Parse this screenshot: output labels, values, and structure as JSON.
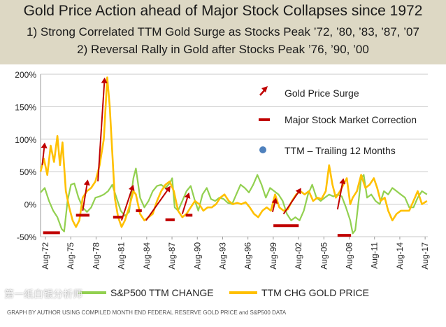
{
  "header": {
    "title": "Gold Price Action ahead of Major Stock Collapses since 1972",
    "line1": "1) Strong Correlated TTM Gold Surge as Stocks Peak ’72, ’80, ’83, ’87, ’07",
    "line2": "2) Reversal Rally in Gold  after Stocks Peak ’76, ’90, ’00"
  },
  "legend": {
    "surge": "Gold Price Surge",
    "correction": "Major Stock Market Correction",
    "ttm": "TTM – Trailing 12 Months",
    "sp500": "S&P500 TTM CHANGE",
    "gold": "TTM CHG GOLD PRICE"
  },
  "watermark": "第一纸白银分析师",
  "source": "GRAPH BY AUTHOR USING COMPILED  MONTH END FEDERAL RESERVE GOLD PRICE  and S&P500 DATA",
  "colors": {
    "gold": "#ffc000",
    "sp500": "#92d050",
    "marker": "#c00000",
    "dot": "#4f81bd",
    "header_bg": "#ddd8c4"
  },
  "chart_data": {
    "type": "line",
    "ylim": [
      -50,
      200
    ],
    "y_ticks": [
      "-50%",
      "0%",
      "50%",
      "100%",
      "150%",
      "200%"
    ],
    "y_tick_values": [
      -50,
      0,
      50,
      100,
      150,
      200
    ],
    "x_ticks": [
      "Aug-72",
      "Aug-75",
      "Aug-78",
      "Aug-81",
      "Aug-84",
      "Aug-87",
      "Aug-90",
      "Aug-93",
      "Aug-96",
      "Aug-99",
      "Aug-02",
      "Aug-05",
      "Aug-08",
      "Aug-11",
      "Aug-14",
      "Aug-17"
    ],
    "x_tick_values": [
      1972.58,
      1975.58,
      1978.58,
      1981.58,
      1984.58,
      1987.58,
      1990.58,
      1993.58,
      1996.58,
      1999.58,
      2002.58,
      2005.58,
      2008.58,
      2011.58,
      2014.58,
      2017.58
    ],
    "xlim": [
      1972.0,
      2017.9
    ],
    "grid": "horizontal",
    "series": [
      {
        "name": "S&P500 TTM CHANGE",
        "color": "#92d050",
        "points": [
          [
            1972.0,
            18
          ],
          [
            1972.5,
            25
          ],
          [
            1973.0,
            5
          ],
          [
            1973.5,
            -10
          ],
          [
            1974.0,
            -20
          ],
          [
            1974.5,
            -38
          ],
          [
            1974.8,
            -42
          ],
          [
            1975.2,
            5
          ],
          [
            1975.6,
            30
          ],
          [
            1976.0,
            32
          ],
          [
            1976.5,
            10
          ],
          [
            1977.0,
            -5
          ],
          [
            1977.5,
            -12
          ],
          [
            1978.0,
            -5
          ],
          [
            1978.5,
            10
          ],
          [
            1979.0,
            12
          ],
          [
            1979.5,
            15
          ],
          [
            1980.0,
            20
          ],
          [
            1980.5,
            30
          ],
          [
            1981.0,
            10
          ],
          [
            1981.5,
            -10
          ],
          [
            1982.0,
            -18
          ],
          [
            1982.5,
            -12
          ],
          [
            1983.0,
            40
          ],
          [
            1983.3,
            55
          ],
          [
            1983.8,
            10
          ],
          [
            1984.3,
            -5
          ],
          [
            1984.8,
            5
          ],
          [
            1985.3,
            20
          ],
          [
            1985.8,
            28
          ],
          [
            1986.3,
            30
          ],
          [
            1986.8,
            25
          ],
          [
            1987.3,
            32
          ],
          [
            1987.6,
            40
          ],
          [
            1987.9,
            -5
          ],
          [
            1988.3,
            -10
          ],
          [
            1988.8,
            5
          ],
          [
            1989.3,
            20
          ],
          [
            1989.8,
            28
          ],
          [
            1990.3,
            5
          ],
          [
            1990.7,
            -10
          ],
          [
            1991.2,
            15
          ],
          [
            1991.7,
            25
          ],
          [
            1992.2,
            8
          ],
          [
            1992.7,
            5
          ],
          [
            1993.2,
            10
          ],
          [
            1993.7,
            8
          ],
          [
            1994.2,
            2
          ],
          [
            1994.7,
            0
          ],
          [
            1995.2,
            15
          ],
          [
            1995.7,
            30
          ],
          [
            1996.2,
            25
          ],
          [
            1996.7,
            18
          ],
          [
            1997.2,
            30
          ],
          [
            1997.7,
            45
          ],
          [
            1998.2,
            30
          ],
          [
            1998.7,
            10
          ],
          [
            1999.2,
            25
          ],
          [
            1999.7,
            20
          ],
          [
            2000.2,
            15
          ],
          [
            2000.7,
            5
          ],
          [
            2001.2,
            -15
          ],
          [
            2001.7,
            -25
          ],
          [
            2002.2,
            -20
          ],
          [
            2002.7,
            -25
          ],
          [
            2003.2,
            -10
          ],
          [
            2003.7,
            15
          ],
          [
            2004.2,
            30
          ],
          [
            2004.7,
            10
          ],
          [
            2005.2,
            5
          ],
          [
            2005.7,
            10
          ],
          [
            2006.2,
            15
          ],
          [
            2006.7,
            12
          ],
          [
            2007.2,
            15
          ],
          [
            2007.7,
            12
          ],
          [
            2008.2,
            -5
          ],
          [
            2008.7,
            -25
          ],
          [
            2009.0,
            -45
          ],
          [
            2009.3,
            -40
          ],
          [
            2009.7,
            5
          ],
          [
            2010.0,
            40
          ],
          [
            2010.3,
            45
          ],
          [
            2010.7,
            10
          ],
          [
            2011.2,
            15
          ],
          [
            2011.7,
            5
          ],
          [
            2012.2,
            0
          ],
          [
            2012.7,
            20
          ],
          [
            2013.2,
            15
          ],
          [
            2013.7,
            25
          ],
          [
            2014.2,
            20
          ],
          [
            2014.7,
            15
          ],
          [
            2015.2,
            10
          ],
          [
            2015.7,
            -5
          ],
          [
            2016.2,
            -5
          ],
          [
            2016.7,
            10
          ],
          [
            2017.2,
            20
          ],
          [
            2017.8,
            15
          ]
        ]
      },
      {
        "name": "TTM CHG GOLD PRICE",
        "color": "#ffc000",
        "points": [
          [
            1972.0,
            50
          ],
          [
            1972.4,
            70
          ],
          [
            1972.8,
            45
          ],
          [
            1973.2,
            90
          ],
          [
            1973.6,
            65
          ],
          [
            1974.0,
            105
          ],
          [
            1974.3,
            60
          ],
          [
            1974.6,
            95
          ],
          [
            1975.0,
            20
          ],
          [
            1975.4,
            -5
          ],
          [
            1975.8,
            -25
          ],
          [
            1976.2,
            -35
          ],
          [
            1976.6,
            -25
          ],
          [
            1977.0,
            10
          ],
          [
            1977.5,
            20
          ],
          [
            1978.0,
            25
          ],
          [
            1978.5,
            35
          ],
          [
            1979.0,
            60
          ],
          [
            1979.5,
            100
          ],
          [
            1979.9,
            195
          ],
          [
            1980.2,
            150
          ],
          [
            1980.5,
            80
          ],
          [
            1980.8,
            10
          ],
          [
            1981.2,
            -20
          ],
          [
            1981.6,
            -35
          ],
          [
            1982.0,
            -25
          ],
          [
            1982.5,
            -5
          ],
          [
            1983.0,
            20
          ],
          [
            1983.3,
            15
          ],
          [
            1983.8,
            -15
          ],
          [
            1984.3,
            -25
          ],
          [
            1984.8,
            -20
          ],
          [
            1985.3,
            -15
          ],
          [
            1985.8,
            5
          ],
          [
            1986.3,
            20
          ],
          [
            1986.8,
            30
          ],
          [
            1987.3,
            35
          ],
          [
            1987.8,
            20
          ],
          [
            1988.3,
            -10
          ],
          [
            1988.8,
            -20
          ],
          [
            1989.3,
            -15
          ],
          [
            1989.8,
            -5
          ],
          [
            1990.3,
            5
          ],
          [
            1990.8,
            0
          ],
          [
            1991.3,
            -10
          ],
          [
            1991.8,
            -5
          ],
          [
            1992.3,
            -5
          ],
          [
            1992.8,
            0
          ],
          [
            1993.3,
            10
          ],
          [
            1993.8,
            15
          ],
          [
            1994.3,
            5
          ],
          [
            1994.8,
            0
          ],
          [
            1995.3,
            2
          ],
          [
            1995.8,
            0
          ],
          [
            1996.3,
            3
          ],
          [
            1996.8,
            -5
          ],
          [
            1997.3,
            -15
          ],
          [
            1997.8,
            -20
          ],
          [
            1998.3,
            -10
          ],
          [
            1998.8,
            -5
          ],
          [
            1999.3,
            -10
          ],
          [
            1999.8,
            15
          ],
          [
            2000.3,
            -5
          ],
          [
            2000.8,
            -10
          ],
          [
            2001.3,
            -8
          ],
          [
            2001.8,
            5
          ],
          [
            2002.3,
            15
          ],
          [
            2002.8,
            20
          ],
          [
            2003.3,
            15
          ],
          [
            2003.8,
            20
          ],
          [
            2004.3,
            5
          ],
          [
            2004.8,
            10
          ],
          [
            2005.3,
            8
          ],
          [
            2005.8,
            20
          ],
          [
            2006.2,
            60
          ],
          [
            2006.6,
            30
          ],
          [
            2007.0,
            10
          ],
          [
            2007.5,
            20
          ],
          [
            2007.9,
            30
          ],
          [
            2008.3,
            40
          ],
          [
            2008.7,
            0
          ],
          [
            2009.0,
            10
          ],
          [
            2009.5,
            20
          ],
          [
            2010.0,
            45
          ],
          [
            2010.5,
            25
          ],
          [
            2011.0,
            30
          ],
          [
            2011.5,
            40
          ],
          [
            2011.9,
            25
          ],
          [
            2012.3,
            5
          ],
          [
            2012.8,
            10
          ],
          [
            2013.2,
            -10
          ],
          [
            2013.7,
            -25
          ],
          [
            2014.2,
            -15
          ],
          [
            2014.7,
            -10
          ],
          [
            2015.2,
            -10
          ],
          [
            2015.7,
            -10
          ],
          [
            2016.2,
            5
          ],
          [
            2016.7,
            20
          ],
          [
            2017.2,
            0
          ],
          [
            2017.8,
            5
          ]
        ]
      }
    ],
    "surge_arrows": [
      [
        1972.2,
        60,
        1972.5,
        95
      ],
      [
        1977.0,
        -10,
        1977.6,
        38
      ],
      [
        1978.8,
        35,
        1979.6,
        195
      ],
      [
        1981.6,
        -25,
        1983.0,
        30
      ],
      [
        1984.5,
        -25,
        1987.4,
        28
      ],
      [
        1988.8,
        -15,
        1989.6,
        18
      ],
      [
        1999.5,
        -12,
        1999.9,
        10
      ],
      [
        2000.8,
        -15,
        2002.9,
        25
      ],
      [
        2007.2,
        -8,
        2007.9,
        40
      ]
    ],
    "corrections": [
      [
        1972.3,
        1974.3,
        -44
      ],
      [
        1976.2,
        1977.8,
        -17
      ],
      [
        1980.6,
        1981.8,
        -20
      ],
      [
        1983.3,
        1984.0,
        -10
      ],
      [
        1986.8,
        1987.9,
        -24
      ],
      [
        1989.2,
        1990.0,
        -17
      ],
      [
        1999.6,
        2002.6,
        -33
      ],
      [
        2007.2,
        2008.8,
        -48
      ]
    ]
  }
}
